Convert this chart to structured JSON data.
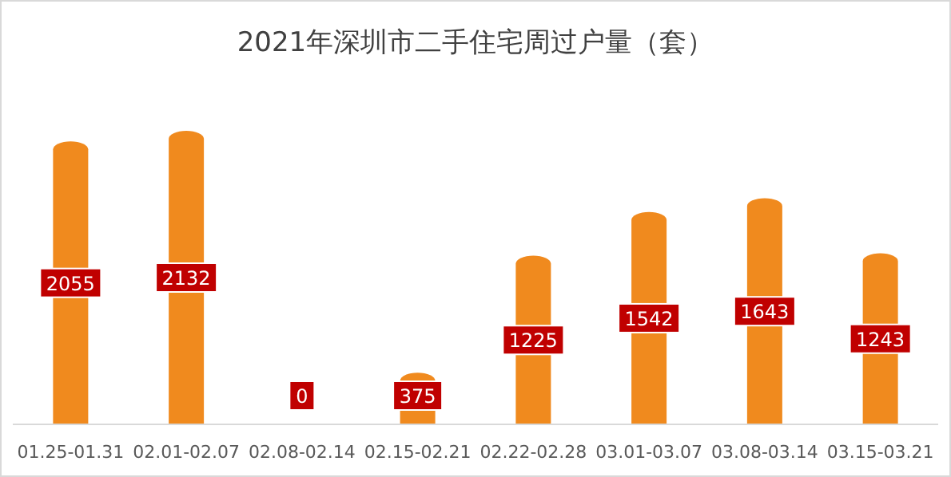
{
  "chart_data": {
    "type": "bar",
    "title": "2021年深圳市二手住宅周过户量（套）",
    "categories": [
      "01.25-01.31",
      "02.01-02.07",
      "02.08-02.14",
      "02.15-02.21",
      "02.22-02.28",
      "03.01-03.07",
      "03.08-03.14",
      "03.15-03.21"
    ],
    "values": [
      2055,
      2132,
      0,
      375,
      1225,
      1542,
      1643,
      1243
    ],
    "color": "#f08a1e",
    "data_labels": true
  }
}
